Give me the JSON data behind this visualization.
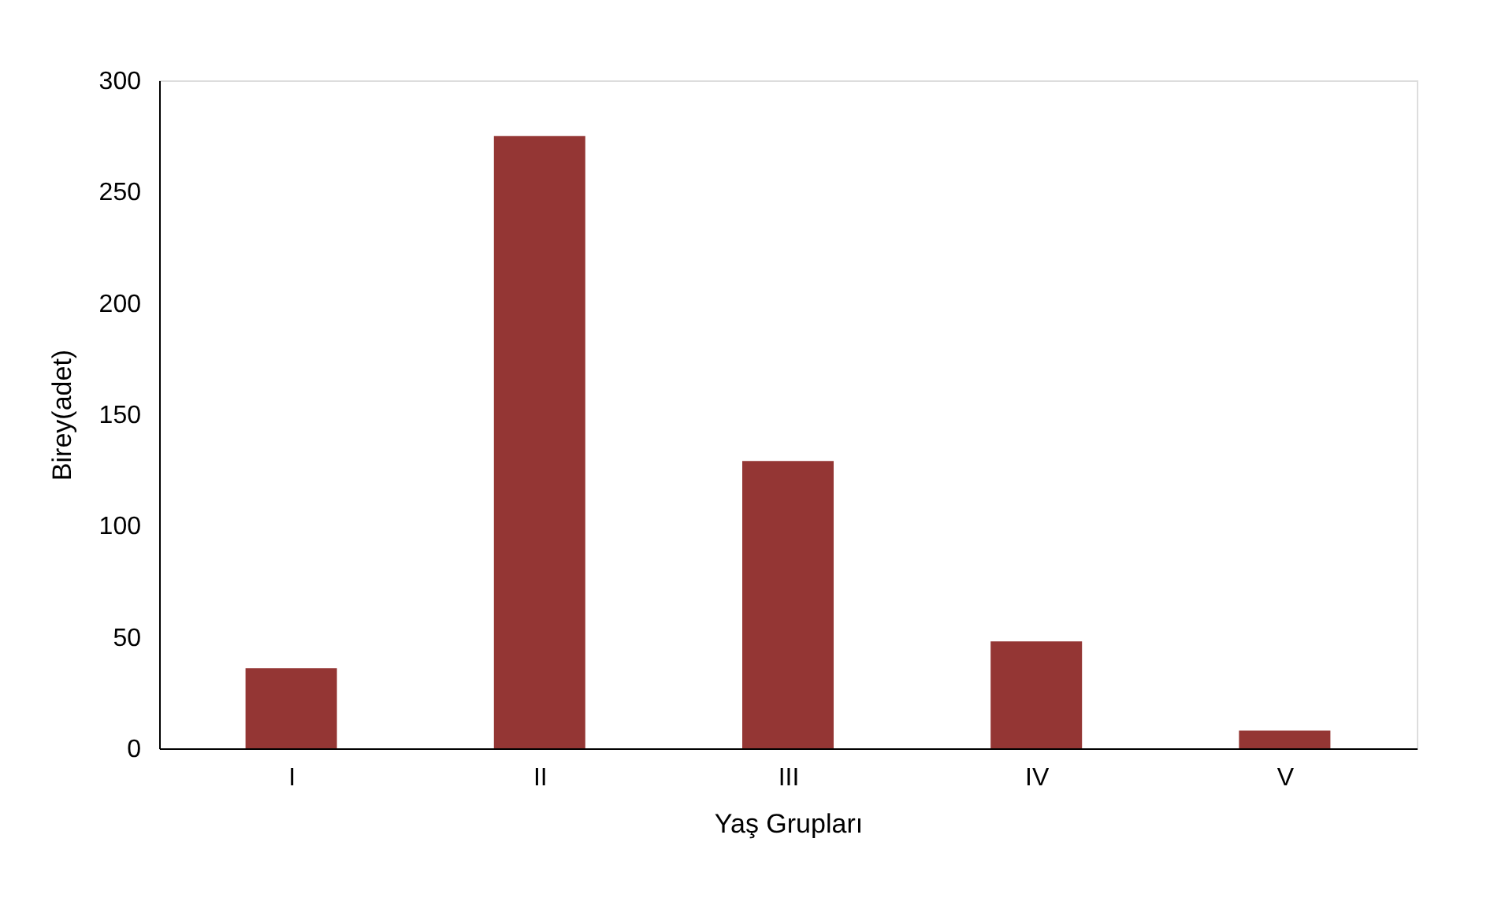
{
  "chart_data": {
    "type": "bar",
    "xlabel": "Yaş Grupları",
    "ylabel": "Birey(adet)",
    "categories": [
      "I",
      "II",
      "III",
      "IV",
      "V"
    ],
    "values": [
      36,
      275,
      129,
      48,
      8
    ],
    "color": "#943634",
    "ylim": [
      0,
      300
    ],
    "yticks": [
      0,
      50,
      100,
      150,
      200,
      250,
      300
    ],
    "grid": false
  }
}
